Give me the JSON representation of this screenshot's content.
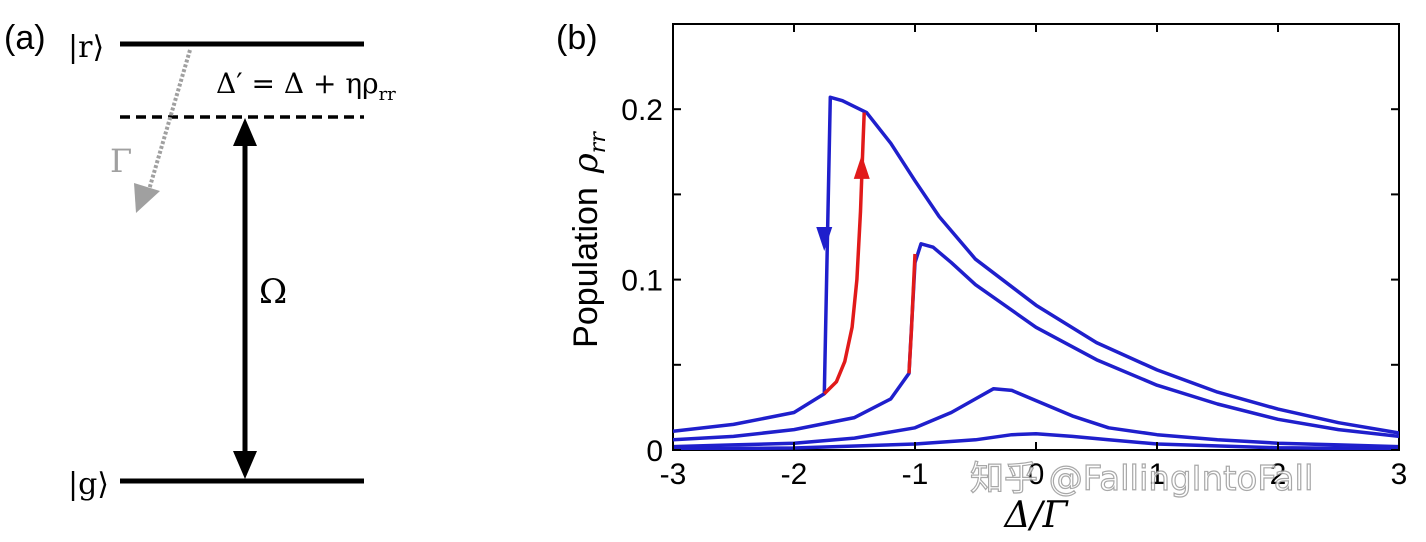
{
  "panel_a": {
    "label": "(a)",
    "level_r": "|r⟩",
    "level_g": "|g⟩",
    "detuning_label": "Δ′ = Δ + ηρ",
    "detuning_sub": "rr",
    "decay_label": "Γ",
    "rabi_label": "Ω",
    "colors": {
      "levels": "#000000",
      "decay": "#a0a0a0"
    }
  },
  "panel_b": {
    "label": "(b)"
  },
  "watermark": "知乎 @FallingIntoFall",
  "chart_data": {
    "type": "line",
    "xlabel": "Δ/Γ",
    "ylabel": "Population",
    "ylabel_symbol": "ρ",
    "ylabel_sub": "rr",
    "xlim": [
      -3,
      3
    ],
    "ylim": [
      0,
      0.25
    ],
    "xticks": [
      -3,
      -2,
      -1,
      0,
      1,
      2,
      3
    ],
    "xtick_labels": [
      "-3",
      "-2",
      "-1",
      "0",
      "1",
      "2",
      "3"
    ],
    "yticks": [
      0,
      0.1,
      0.2
    ],
    "ytick_labels": [
      "0",
      "0.1",
      "0.2"
    ],
    "grid": false,
    "series": [
      {
        "color": "#1f1fcc",
        "x": [
          -3.0,
          -2.5,
          -2.0,
          -1.75,
          -1.7,
          -1.6,
          -1.4,
          -1.2,
          -1.0,
          -0.8,
          -0.5,
          0.0,
          0.5,
          1.0,
          1.5,
          2.0,
          2.5,
          3.0
        ],
        "y": [
          0.011,
          0.015,
          0.022,
          0.033,
          0.207,
          0.205,
          0.198,
          0.18,
          0.158,
          0.137,
          0.112,
          0.085,
          0.063,
          0.047,
          0.034,
          0.024,
          0.016,
          0.01
        ]
      },
      {
        "color": "#1f1fcc",
        "x": [
          -3.0,
          -2.5,
          -2.0,
          -1.5,
          -1.2,
          -1.05,
          -1.0,
          -0.95,
          -0.85,
          -0.7,
          -0.5,
          0.0,
          0.5,
          1.0,
          1.5,
          2.0,
          2.5,
          3.0
        ],
        "y": [
          0.006,
          0.008,
          0.012,
          0.019,
          0.03,
          0.045,
          0.11,
          0.121,
          0.119,
          0.11,
          0.097,
          0.072,
          0.053,
          0.038,
          0.027,
          0.018,
          0.012,
          0.008
        ]
      },
      {
        "color": "#1f1fcc",
        "x": [
          -3.0,
          -2.5,
          -2.0,
          -1.5,
          -1.0,
          -0.7,
          -0.5,
          -0.35,
          -0.2,
          0.0,
          0.3,
          0.6,
          1.0,
          1.5,
          2.0,
          2.5,
          3.0
        ],
        "y": [
          0.002,
          0.003,
          0.004,
          0.007,
          0.013,
          0.022,
          0.03,
          0.036,
          0.035,
          0.029,
          0.02,
          0.013,
          0.009,
          0.006,
          0.004,
          0.003,
          0.002
        ]
      },
      {
        "color": "#1f1fcc",
        "x": [
          -3.0,
          -2.0,
          -1.0,
          -0.5,
          -0.2,
          0.0,
          0.3,
          0.6,
          1.0,
          2.0,
          3.0
        ],
        "y": [
          0.0007,
          0.0012,
          0.0035,
          0.006,
          0.009,
          0.0095,
          0.008,
          0.006,
          0.0035,
          0.0013,
          0.0007
        ]
      }
    ],
    "hysteresis": [
      {
        "color": "#e11a1a",
        "x": [
          -1.75,
          -1.65,
          -1.58,
          -1.52,
          -1.48,
          -1.45,
          -1.43,
          -1.42
        ],
        "y": [
          0.033,
          0.04,
          0.052,
          0.072,
          0.1,
          0.14,
          0.18,
          0.198
        ]
      },
      {
        "color": "#e11a1a",
        "x": [
          -1.05,
          -1.03,
          -1.01,
          -1.0
        ],
        "y": [
          0.045,
          0.07,
          0.1,
          0.115
        ]
      }
    ],
    "arrows": [
      {
        "color": "#1f1fcc",
        "x": -1.75,
        "y": 0.125,
        "direction": "down"
      },
      {
        "color": "#e11a1a",
        "x": -1.44,
        "y": 0.165,
        "direction": "up"
      }
    ]
  }
}
